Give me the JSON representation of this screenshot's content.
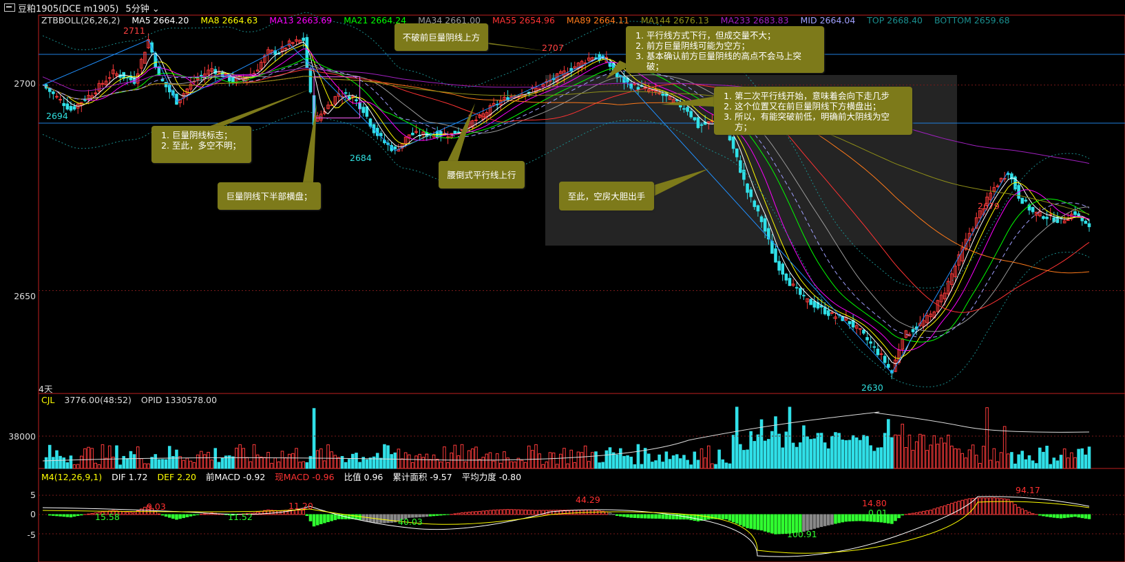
{
  "window": {
    "title": "豆粕1905(DCE m1905)",
    "period": "5分钟"
  },
  "legend_main": [
    {
      "label": "ZTBBOLL(26,26,2)",
      "color": "#dddddd"
    },
    {
      "label": "MA5 2664.20",
      "color": "#ffffff"
    },
    {
      "label": "MA8 2664.63",
      "color": "#ffff00"
    },
    {
      "label": "MA13 2663.69",
      "color": "#ff00ff"
    },
    {
      "label": "MA21 2664.24",
      "color": "#00ff00"
    },
    {
      "label": "MA34 2661.00",
      "color": "#9a9a9a"
    },
    {
      "label": "MA55 2654.96",
      "color": "#ff3333"
    },
    {
      "label": "MA89 2664.11",
      "color": "#ff7a1a"
    },
    {
      "label": "MA144 2676.13",
      "color": "#8f8f18"
    },
    {
      "label": "MA233 2683.83",
      "color": "#a020c0"
    },
    {
      "label": "MID 2664.04",
      "color": "#a0a0ff"
    },
    {
      "label": "TOP 2668.40",
      "color": "#1a8f8f"
    },
    {
      "label": "BOTTOM 2659.68",
      "color": "#1a8f8f"
    }
  ],
  "legend_volume": [
    {
      "label": "CJL",
      "color": "#ffff00"
    },
    {
      "label": "3776.00(48:52)",
      "color": "#dddddd"
    },
    {
      "label": "OPID 1330578.00",
      "color": "#dddddd"
    }
  ],
  "legend_macd": [
    {
      "label": "M4(12,26,9,1)",
      "color": "#ffff00"
    },
    {
      "label": "DIF 1.72",
      "color": "#ffffff"
    },
    {
      "label": "DEF 2.20",
      "color": "#ffff00"
    },
    {
      "label": "前MACD -0.92",
      "color": "#ffffff"
    },
    {
      "label": "现MACD -0.96",
      "color": "#ff3333"
    },
    {
      "label": "比值 0.96",
      "color": "#ffffff"
    },
    {
      "label": "累计面积 -9.57",
      "color": "#ffffff"
    },
    {
      "label": "平均力度 -0.80",
      "color": "#ffffff"
    }
  ],
  "axes": {
    "price_ticks": [
      "2700",
      "2650"
    ],
    "volume_ticks": [
      "38000"
    ],
    "macd_ticks": [
      "5",
      "0",
      "-5"
    ],
    "days_label": "4天"
  },
  "price_labels": [
    {
      "text": "2711",
      "color": "#ff4040"
    },
    {
      "text": "2694",
      "color": "#30e0e0"
    },
    {
      "text": "2684",
      "color": "#30e0e0"
    },
    {
      "text": "2707",
      "color": "#ff4040"
    },
    {
      "text": "2630",
      "color": "#30e0e0"
    },
    {
      "text": "2679",
      "color": "#ff4040"
    }
  ],
  "macd_labels": [
    {
      "text": "15.58",
      "color": "#30ff30"
    },
    {
      "text": "9.03",
      "color": "#ff3030"
    },
    {
      "text": "11.52",
      "color": "#30ff30"
    },
    {
      "text": "11.20",
      "color": "#ff3030"
    },
    {
      "text": "40.03",
      "color": "#30ff30"
    },
    {
      "text": "44.29",
      "color": "#ff3030"
    },
    {
      "text": "100.91",
      "color": "#30ff30"
    },
    {
      "text": "14.80",
      "color": "#ff3030"
    },
    {
      "text": "0.01",
      "color": "#30ff30"
    },
    {
      "text": "94.17",
      "color": "#ff3030"
    }
  ],
  "annotations": {
    "c1": {
      "items": [
        "巨量阴线标志；",
        "至此，多空不明；"
      ]
    },
    "c2": {
      "text": "巨量阴线下半部横盘；"
    },
    "c3": {
      "text": "不破前巨量阴线上方"
    },
    "c4": {
      "text": "腰倒式平行线上行"
    },
    "c5": {
      "items": [
        "平行线方式下行，但成交量不大；",
        "前方巨量阴线可能为空方；",
        "基本确认前方巨量阴线的高点不会马上突破；"
      ]
    },
    "c6": {
      "items": [
        "第二次平行线开始，意味着会向下走几步",
        "这个位置又在前巨量阴线下方横盘出；",
        "所以，有能突破前低，明确前大阴线为空方；"
      ]
    },
    "c7": {
      "text": "至此，空房大胆出手"
    }
  },
  "chart_data": {
    "type": "candlestick",
    "title": "豆粕1905(DCE m1905) 5分钟",
    "price_axis": {
      "ylim": [
        2625,
        2717
      ],
      "ticks": [
        2700,
        2650
      ]
    },
    "close_path": [
      [
        0,
        2700
      ],
      [
        4,
        2697
      ],
      [
        8,
        2694
      ],
      [
        14,
        2698
      ],
      [
        20,
        2703
      ],
      [
        26,
        2701
      ],
      [
        30,
        2711
      ],
      [
        33,
        2702
      ],
      [
        38,
        2696
      ],
      [
        43,
        2701
      ],
      [
        48,
        2704
      ],
      [
        54,
        2701
      ],
      [
        60,
        2703
      ],
      [
        64,
        2708
      ],
      [
        67,
        2708
      ],
      [
        70,
        2710
      ],
      [
        74,
        2711
      ],
      [
        77,
        2691
      ],
      [
        80,
        2694
      ],
      [
        84,
        2698
      ],
      [
        88,
        2697
      ],
      [
        91,
        2694
      ],
      [
        94,
        2689
      ],
      [
        97,
        2686
      ],
      [
        100,
        2684
      ],
      [
        104,
        2688
      ],
      [
        110,
        2688
      ],
      [
        116,
        2688
      ],
      [
        120,
        2690
      ],
      [
        124,
        2692
      ],
      [
        128,
        2695
      ],
      [
        132,
        2697
      ],
      [
        136,
        2698
      ],
      [
        140,
        2699
      ],
      [
        144,
        2701
      ],
      [
        148,
        2703
      ],
      [
        152,
        2705
      ],
      [
        156,
        2707
      ],
      [
        160,
        2706
      ],
      [
        163,
        2702
      ],
      [
        167,
        2700
      ],
      [
        171,
        2699
      ],
      [
        175,
        2698
      ],
      [
        179,
        2696
      ],
      [
        183,
        2694
      ],
      [
        186,
        2690
      ],
      [
        190,
        2691
      ],
      [
        194,
        2689
      ],
      [
        197,
        2682
      ],
      [
        200,
        2674
      ],
      [
        204,
        2667
      ],
      [
        208,
        2657
      ],
      [
        212,
        2652
      ],
      [
        216,
        2648
      ],
      [
        220,
        2646
      ],
      [
        224,
        2644
      ],
      [
        228,
        2643
      ],
      [
        232,
        2640
      ],
      [
        235,
        2637
      ],
      [
        238,
        2634
      ],
      [
        241,
        2630
      ],
      [
        244,
        2639
      ],
      [
        248,
        2641
      ],
      [
        252,
        2644
      ],
      [
        256,
        2650
      ],
      [
        260,
        2658
      ],
      [
        263,
        2664
      ],
      [
        266,
        2669
      ],
      [
        270,
        2675
      ],
      [
        274,
        2679
      ],
      [
        277,
        2673
      ],
      [
        281,
        2669
      ],
      [
        285,
        2668
      ],
      [
        289,
        2667
      ],
      [
        293,
        2669
      ],
      [
        297,
        2665
      ]
    ],
    "volume_axis": {
      "ticks": [
        38000
      ],
      "last": 3776
    },
    "macd_axis": {
      "ticks": [
        5,
        0,
        -5
      ]
    }
  }
}
